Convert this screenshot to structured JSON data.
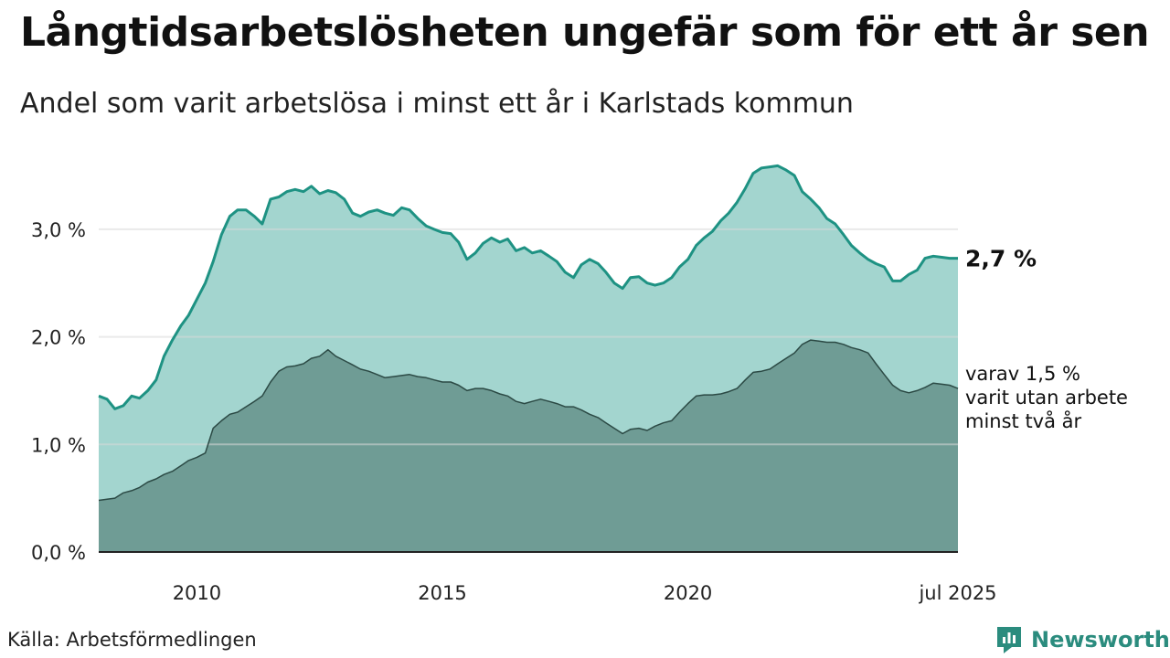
{
  "header": {
    "title": "Långtidsarbetslösheten ungefär som för ett år sen",
    "subtitle": "Andel som varit arbetslösa i minst ett år i Karlstads kommun"
  },
  "footer": {
    "source": "Källa: Arbetsförmedlingen",
    "brand": "Newsworthy"
  },
  "colors": {
    "area_total": "#a3d5cf",
    "line_total": "#1e9283",
    "area_sub": "#6f9c95",
    "line_sub": "#2c4a45",
    "grid": "#d9d9d9",
    "axis": "#222222",
    "brand": "#2b8c7e"
  },
  "chart_data": {
    "type": "area",
    "x_ticks": [
      {
        "x": 2010.0,
        "label": "2010"
      },
      {
        "x": 2015.0,
        "label": "2015"
      },
      {
        "x": 2020.0,
        "label": "2020"
      },
      {
        "x": 2025.5,
        "label": "jul 2025"
      }
    ],
    "xlim": [
      2008.0,
      2025.5
    ],
    "ylim": [
      0,
      3.5
    ],
    "y_ticks": [
      {
        "y": 0.0,
        "label": "0,0 %"
      },
      {
        "y": 1.0,
        "label": "1,0 %"
      },
      {
        "y": 2.0,
        "label": "2,0 %"
      },
      {
        "y": 3.0,
        "label": "3,0 %"
      }
    ],
    "grid": true,
    "series": [
      {
        "name": "total",
        "end_label": [
          "2,7 %"
        ],
        "points": [
          [
            2008.0,
            1.45
          ],
          [
            2008.17,
            1.42
          ],
          [
            2008.33,
            1.33
          ],
          [
            2008.5,
            1.36
          ],
          [
            2008.67,
            1.45
          ],
          [
            2008.83,
            1.43
          ],
          [
            2009.0,
            1.5
          ],
          [
            2009.17,
            1.6
          ],
          [
            2009.33,
            1.82
          ],
          [
            2009.5,
            1.97
          ],
          [
            2009.67,
            2.1
          ],
          [
            2009.83,
            2.2
          ],
          [
            2010.0,
            2.35
          ],
          [
            2010.17,
            2.5
          ],
          [
            2010.33,
            2.7
          ],
          [
            2010.5,
            2.95
          ],
          [
            2010.67,
            3.12
          ],
          [
            2010.83,
            3.18
          ],
          [
            2011.0,
            3.18
          ],
          [
            2011.17,
            3.12
          ],
          [
            2011.33,
            3.05
          ],
          [
            2011.5,
            3.28
          ],
          [
            2011.67,
            3.3
          ],
          [
            2011.83,
            3.35
          ],
          [
            2012.0,
            3.37
          ],
          [
            2012.17,
            3.35
          ],
          [
            2012.33,
            3.4
          ],
          [
            2012.5,
            3.33
          ],
          [
            2012.67,
            3.36
          ],
          [
            2012.83,
            3.34
          ],
          [
            2013.0,
            3.28
          ],
          [
            2013.17,
            3.15
          ],
          [
            2013.33,
            3.12
          ],
          [
            2013.5,
            3.16
          ],
          [
            2013.67,
            3.18
          ],
          [
            2013.83,
            3.15
          ],
          [
            2014.0,
            3.13
          ],
          [
            2014.17,
            3.2
          ],
          [
            2014.33,
            3.18
          ],
          [
            2014.5,
            3.1
          ],
          [
            2014.67,
            3.03
          ],
          [
            2014.83,
            3.0
          ],
          [
            2015.0,
            2.97
          ],
          [
            2015.17,
            2.96
          ],
          [
            2015.33,
            2.88
          ],
          [
            2015.5,
            2.72
          ],
          [
            2015.67,
            2.78
          ],
          [
            2015.83,
            2.87
          ],
          [
            2016.0,
            2.92
          ],
          [
            2016.17,
            2.88
          ],
          [
            2016.33,
            2.91
          ],
          [
            2016.5,
            2.8
          ],
          [
            2016.67,
            2.83
          ],
          [
            2016.83,
            2.78
          ],
          [
            2017.0,
            2.8
          ],
          [
            2017.17,
            2.75
          ],
          [
            2017.33,
            2.7
          ],
          [
            2017.5,
            2.6
          ],
          [
            2017.67,
            2.55
          ],
          [
            2017.83,
            2.67
          ],
          [
            2018.0,
            2.72
          ],
          [
            2018.17,
            2.68
          ],
          [
            2018.33,
            2.6
          ],
          [
            2018.5,
            2.5
          ],
          [
            2018.67,
            2.45
          ],
          [
            2018.83,
            2.55
          ],
          [
            2019.0,
            2.56
          ],
          [
            2019.17,
            2.5
          ],
          [
            2019.33,
            2.48
          ],
          [
            2019.5,
            2.5
          ],
          [
            2019.67,
            2.55
          ],
          [
            2019.83,
            2.65
          ],
          [
            2020.0,
            2.72
          ],
          [
            2020.17,
            2.85
          ],
          [
            2020.33,
            2.92
          ],
          [
            2020.5,
            2.98
          ],
          [
            2020.67,
            3.08
          ],
          [
            2020.83,
            3.15
          ],
          [
            2021.0,
            3.25
          ],
          [
            2021.17,
            3.38
          ],
          [
            2021.33,
            3.52
          ],
          [
            2021.5,
            3.57
          ],
          [
            2021.67,
            3.58
          ],
          [
            2021.83,
            3.59
          ],
          [
            2022.0,
            3.55
          ],
          [
            2022.17,
            3.5
          ],
          [
            2022.33,
            3.35
          ],
          [
            2022.5,
            3.28
          ],
          [
            2022.67,
            3.2
          ],
          [
            2022.83,
            3.1
          ],
          [
            2023.0,
            3.05
          ],
          [
            2023.17,
            2.95
          ],
          [
            2023.33,
            2.85
          ],
          [
            2023.5,
            2.78
          ],
          [
            2023.67,
            2.72
          ],
          [
            2023.83,
            2.68
          ],
          [
            2024.0,
            2.65
          ],
          [
            2024.17,
            2.52
          ],
          [
            2024.33,
            2.52
          ],
          [
            2024.5,
            2.58
          ],
          [
            2024.67,
            2.62
          ],
          [
            2024.83,
            2.73
          ],
          [
            2025.0,
            2.75
          ],
          [
            2025.17,
            2.74
          ],
          [
            2025.33,
            2.73
          ],
          [
            2025.5,
            2.73
          ]
        ]
      },
      {
        "name": "minst två år",
        "end_label": [
          "varav 1,5 %",
          "varit utan arbete",
          "minst två år"
        ],
        "points": [
          [
            2008.0,
            0.48
          ],
          [
            2008.17,
            0.49
          ],
          [
            2008.33,
            0.5
          ],
          [
            2008.5,
            0.55
          ],
          [
            2008.67,
            0.57
          ],
          [
            2008.83,
            0.6
          ],
          [
            2009.0,
            0.65
          ],
          [
            2009.17,
            0.68
          ],
          [
            2009.33,
            0.72
          ],
          [
            2009.5,
            0.75
          ],
          [
            2009.67,
            0.8
          ],
          [
            2009.83,
            0.85
          ],
          [
            2010.0,
            0.88
          ],
          [
            2010.17,
            0.92
          ],
          [
            2010.33,
            1.15
          ],
          [
            2010.5,
            1.22
          ],
          [
            2010.67,
            1.28
          ],
          [
            2010.83,
            1.3
          ],
          [
            2011.0,
            1.35
          ],
          [
            2011.17,
            1.4
          ],
          [
            2011.33,
            1.45
          ],
          [
            2011.5,
            1.58
          ],
          [
            2011.67,
            1.68
          ],
          [
            2011.83,
            1.72
          ],
          [
            2012.0,
            1.73
          ],
          [
            2012.17,
            1.75
          ],
          [
            2012.33,
            1.8
          ],
          [
            2012.5,
            1.82
          ],
          [
            2012.67,
            1.88
          ],
          [
            2012.83,
            1.82
          ],
          [
            2013.0,
            1.78
          ],
          [
            2013.17,
            1.74
          ],
          [
            2013.33,
            1.7
          ],
          [
            2013.5,
            1.68
          ],
          [
            2013.67,
            1.65
          ],
          [
            2013.83,
            1.62
          ],
          [
            2014.0,
            1.63
          ],
          [
            2014.17,
            1.64
          ],
          [
            2014.33,
            1.65
          ],
          [
            2014.5,
            1.63
          ],
          [
            2014.67,
            1.62
          ],
          [
            2014.83,
            1.6
          ],
          [
            2015.0,
            1.58
          ],
          [
            2015.17,
            1.58
          ],
          [
            2015.33,
            1.55
          ],
          [
            2015.5,
            1.5
          ],
          [
            2015.67,
            1.52
          ],
          [
            2015.83,
            1.52
          ],
          [
            2016.0,
            1.5
          ],
          [
            2016.17,
            1.47
          ],
          [
            2016.33,
            1.45
          ],
          [
            2016.5,
            1.4
          ],
          [
            2016.67,
            1.38
          ],
          [
            2016.83,
            1.4
          ],
          [
            2017.0,
            1.42
          ],
          [
            2017.17,
            1.4
          ],
          [
            2017.33,
            1.38
          ],
          [
            2017.5,
            1.35
          ],
          [
            2017.67,
            1.35
          ],
          [
            2017.83,
            1.32
          ],
          [
            2018.0,
            1.28
          ],
          [
            2018.17,
            1.25
          ],
          [
            2018.33,
            1.2
          ],
          [
            2018.5,
            1.15
          ],
          [
            2018.67,
            1.1
          ],
          [
            2018.83,
            1.14
          ],
          [
            2019.0,
            1.15
          ],
          [
            2019.17,
            1.13
          ],
          [
            2019.33,
            1.17
          ],
          [
            2019.5,
            1.2
          ],
          [
            2019.67,
            1.22
          ],
          [
            2019.83,
            1.3
          ],
          [
            2020.0,
            1.38
          ],
          [
            2020.17,
            1.45
          ],
          [
            2020.33,
            1.46
          ],
          [
            2020.5,
            1.46
          ],
          [
            2020.67,
            1.47
          ],
          [
            2020.83,
            1.49
          ],
          [
            2021.0,
            1.52
          ],
          [
            2021.17,
            1.6
          ],
          [
            2021.33,
            1.67
          ],
          [
            2021.5,
            1.68
          ],
          [
            2021.67,
            1.7
          ],
          [
            2021.83,
            1.75
          ],
          [
            2022.0,
            1.8
          ],
          [
            2022.17,
            1.85
          ],
          [
            2022.33,
            1.93
          ],
          [
            2022.5,
            1.97
          ],
          [
            2022.67,
            1.96
          ],
          [
            2022.83,
            1.95
          ],
          [
            2023.0,
            1.95
          ],
          [
            2023.17,
            1.93
          ],
          [
            2023.33,
            1.9
          ],
          [
            2023.5,
            1.88
          ],
          [
            2023.67,
            1.85
          ],
          [
            2023.83,
            1.75
          ],
          [
            2024.0,
            1.65
          ],
          [
            2024.17,
            1.55
          ],
          [
            2024.33,
            1.5
          ],
          [
            2024.5,
            1.48
          ],
          [
            2024.67,
            1.5
          ],
          [
            2024.83,
            1.53
          ],
          [
            2025.0,
            1.57
          ],
          [
            2025.17,
            1.56
          ],
          [
            2025.33,
            1.55
          ],
          [
            2025.5,
            1.52
          ]
        ]
      }
    ]
  }
}
